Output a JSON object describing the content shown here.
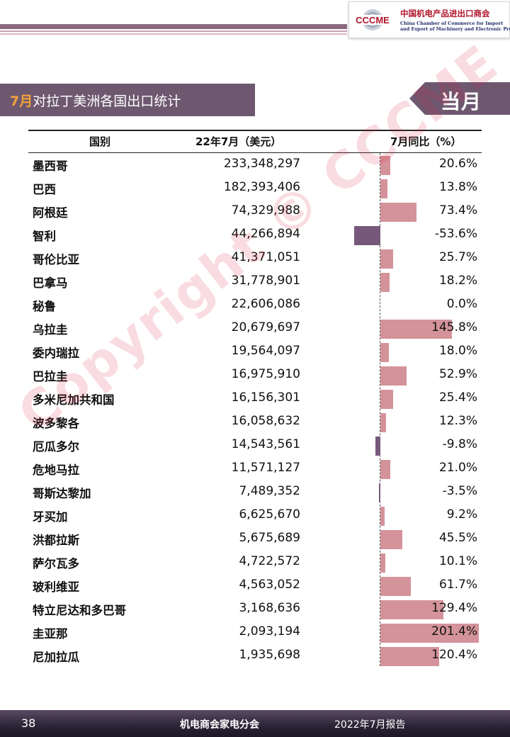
{
  "header": {
    "logo_mark": "CCCME",
    "org_cn": "中国机电产品进出口商会",
    "org_en_1": "China Chamber of Commerce for Import",
    "org_en_2": "and Export of Machinery and Electronic Products"
  },
  "section": {
    "title_month": "7月",
    "title_rest": "对拉丁美洲各国出口统计",
    "badge": "当月"
  },
  "table": {
    "col_country": "国别",
    "col_value": "22年7月（美元）",
    "col_yoy": "7月同比（%）",
    "rows": [
      {
        "country": "墨西哥",
        "value": "233,348,297",
        "yoy": "20.6%",
        "yoy_num": 20.6
      },
      {
        "country": "巴西",
        "value": "182,393,406",
        "yoy": "13.8%",
        "yoy_num": 13.8
      },
      {
        "country": "阿根廷",
        "value": "74,329,988",
        "yoy": "73.4%",
        "yoy_num": 73.4
      },
      {
        "country": "智利",
        "value": "44,266,894",
        "yoy": "-53.6%",
        "yoy_num": -53.6
      },
      {
        "country": "哥伦比亚",
        "value": "41,371,051",
        "yoy": "25.7%",
        "yoy_num": 25.7
      },
      {
        "country": "巴拿马",
        "value": "31,778,901",
        "yoy": "18.2%",
        "yoy_num": 18.2
      },
      {
        "country": "秘鲁",
        "value": "22,606,086",
        "yoy": "0.0%",
        "yoy_num": 0.0
      },
      {
        "country": "乌拉圭",
        "value": "20,679,697",
        "yoy": "145.8%",
        "yoy_num": 145.8
      },
      {
        "country": "委内瑞拉",
        "value": "19,564,097",
        "yoy": "18.0%",
        "yoy_num": 18.0
      },
      {
        "country": "巴拉圭",
        "value": "16,975,910",
        "yoy": "52.9%",
        "yoy_num": 52.9
      },
      {
        "country": "多米尼加共和国",
        "value": "16,156,301",
        "yoy": "25.4%",
        "yoy_num": 25.4
      },
      {
        "country": "波多黎各",
        "value": "16,058,632",
        "yoy": "12.3%",
        "yoy_num": 12.3
      },
      {
        "country": "厄瓜多尔",
        "value": "14,543,561",
        "yoy": "-9.8%",
        "yoy_num": -9.8
      },
      {
        "country": "危地马拉",
        "value": "11,571,127",
        "yoy": "21.0%",
        "yoy_num": 21.0
      },
      {
        "country": "哥斯达黎加",
        "value": "7,489,352",
        "yoy": "-3.5%",
        "yoy_num": -3.5
      },
      {
        "country": "牙买加",
        "value": "6,625,670",
        "yoy": "9.2%",
        "yoy_num": 9.2
      },
      {
        "country": "洪都拉斯",
        "value": "5,675,689",
        "yoy": "45.5%",
        "yoy_num": 45.5
      },
      {
        "country": "萨尔瓦多",
        "value": "4,722,572",
        "yoy": "10.1%",
        "yoy_num": 10.1
      },
      {
        "country": "玻利维亚",
        "value": "4,563,052",
        "yoy": "61.7%",
        "yoy_num": 61.7
      },
      {
        "country": "特立尼达和多巴哥",
        "value": "3,168,636",
        "yoy": "129.4%",
        "yoy_num": 129.4
      },
      {
        "country": "圭亚那",
        "value": "2,093,194",
        "yoy": "201.4%",
        "yoy_num": 201.4
      },
      {
        "country": "尼加拉瓜",
        "value": "1,935,698",
        "yoy": "120.4%",
        "yoy_num": 120.4
      }
    ]
  },
  "colors": {
    "positive_bar": "#d4939a",
    "negative_bar": "#76597a",
    "title_bg": "#6e5870",
    "accent": "#f2a23a"
  },
  "watermark": "Copyright © CCCME",
  "footer": {
    "page_number": "38",
    "org": "机电商会家电分会",
    "report": "2022年7月报告"
  }
}
